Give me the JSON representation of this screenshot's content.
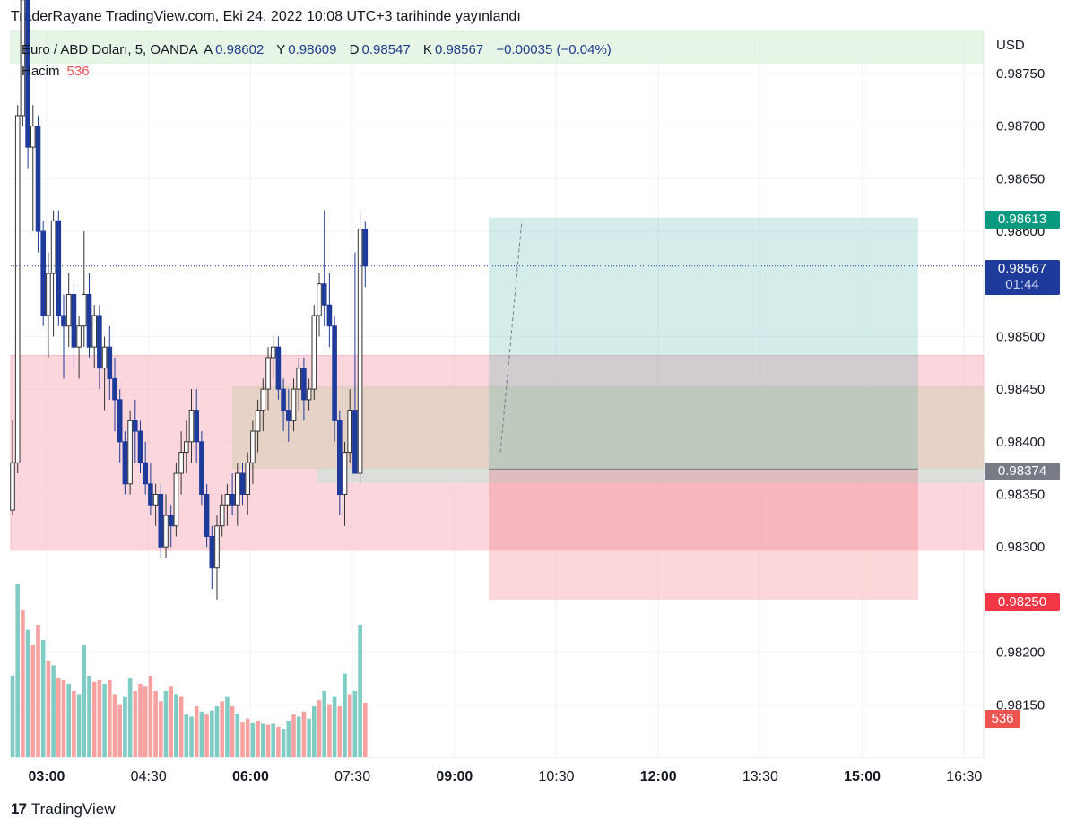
{
  "header": {
    "title": "TraderRayane TradingView.com, Eki 24, 2022 10:08 UTC+3 tarihinde yayınlandı"
  },
  "legend": {
    "symbol": "Euro / ABD Doları, 5, OANDA",
    "open_label": "A",
    "open": "0.98602",
    "high_label": "Y",
    "high": "0.98609",
    "low_label": "D",
    "low": "0.98547",
    "close_label": "K",
    "close": "0.98567",
    "change": "−0.00035 (−0.04%)",
    "volume_label": "Hacim",
    "volume": "536"
  },
  "axis": {
    "currency": "USD",
    "y_ticks": [
      "0.98750",
      "0.98700",
      "0.98650",
      "0.98600",
      "0.98500",
      "0.98450",
      "0.98400",
      "0.98350",
      "0.98300",
      "0.98200",
      "0.98150"
    ],
    "x_ticks": [
      {
        "label": "03:00",
        "bold": true
      },
      {
        "label": "04:30",
        "bold": false
      },
      {
        "label": "06:00",
        "bold": true
      },
      {
        "label": "07:30",
        "bold": false
      },
      {
        "label": "09:00",
        "bold": true
      },
      {
        "label": "10:30",
        "bold": false
      },
      {
        "label": "12:00",
        "bold": true
      },
      {
        "label": "13:30",
        "bold": false
      },
      {
        "label": "15:00",
        "bold": true
      },
      {
        "label": "16:30",
        "bold": false
      }
    ]
  },
  "price_tags": {
    "target": "0.98613",
    "current": "0.98567",
    "countdown": "01:44",
    "entry": "0.98374",
    "stop": "0.98250",
    "volume": "536"
  },
  "colors": {
    "up_body": "#ffffff",
    "down_body": "#1e3a9a",
    "wick": "#333333",
    "vol_up": "#80cbc4",
    "vol_down": "#f7a1a1",
    "target_tag": "#089981",
    "current_tag": "#1e3a9a",
    "entry_tag": "#787b86",
    "stop_tag": "#f23645"
  },
  "footer": {
    "brand": "TradingView",
    "logo": "17"
  },
  "chart_data": {
    "type": "candlestick",
    "symbol": "EURUSD",
    "interval": "5",
    "ylim": [
      0.981,
      0.9879
    ],
    "candles_ohlc": [
      [
        0.98335,
        0.9842,
        0.9833,
        0.9838
      ],
      [
        0.9838,
        0.9872,
        0.9837,
        0.9871
      ],
      [
        0.9871,
        0.9885,
        0.987,
        0.9882
      ],
      [
        0.9882,
        0.9883,
        0.9866,
        0.9868
      ],
      [
        0.9868,
        0.9872,
        0.986,
        0.987
      ],
      [
        0.987,
        0.9871,
        0.9858,
        0.986
      ],
      [
        0.986,
        0.9861,
        0.9851,
        0.9852
      ],
      [
        0.9852,
        0.9858,
        0.9848,
        0.9856
      ],
      [
        0.9856,
        0.9862,
        0.985,
        0.9861
      ],
      [
        0.9861,
        0.9862,
        0.9851,
        0.9852
      ],
      [
        0.9852,
        0.9854,
        0.9846,
        0.9851
      ],
      [
        0.9851,
        0.9856,
        0.9849,
        0.9854
      ],
      [
        0.9854,
        0.9855,
        0.9847,
        0.9849
      ],
      [
        0.9849,
        0.9852,
        0.9846,
        0.9851
      ],
      [
        0.9851,
        0.986,
        0.9849,
        0.9854
      ],
      [
        0.9854,
        0.9856,
        0.9848,
        0.9849
      ],
      [
        0.9849,
        0.9853,
        0.9847,
        0.9852
      ],
      [
        0.9852,
        0.9853,
        0.9845,
        0.9847
      ],
      [
        0.9847,
        0.985,
        0.9843,
        0.9849
      ],
      [
        0.9849,
        0.9851,
        0.9844,
        0.9846
      ],
      [
        0.9846,
        0.9848,
        0.9841,
        0.9844
      ],
      [
        0.9844,
        0.9845,
        0.9838,
        0.984
      ],
      [
        0.984,
        0.9841,
        0.9835,
        0.9836
      ],
      [
        0.9836,
        0.9843,
        0.9835,
        0.9842
      ],
      [
        0.9842,
        0.9844,
        0.9838,
        0.9841
      ],
      [
        0.9841,
        0.9842,
        0.9837,
        0.9838
      ],
      [
        0.9838,
        0.984,
        0.9835,
        0.9836
      ],
      [
        0.9836,
        0.9838,
        0.9833,
        0.9834
      ],
      [
        0.9834,
        0.9836,
        0.9832,
        0.9835
      ],
      [
        0.9835,
        0.9836,
        0.9829,
        0.983
      ],
      [
        0.983,
        0.9835,
        0.9829,
        0.9833
      ],
      [
        0.9833,
        0.9834,
        0.983,
        0.9832
      ],
      [
        0.9832,
        0.9838,
        0.9831,
        0.9837
      ],
      [
        0.9837,
        0.9841,
        0.9835,
        0.9839
      ],
      [
        0.9839,
        0.9842,
        0.9837,
        0.984
      ],
      [
        0.984,
        0.9845,
        0.9838,
        0.9843
      ],
      [
        0.9843,
        0.9845,
        0.9838,
        0.984
      ],
      [
        0.984,
        0.9841,
        0.9834,
        0.9835
      ],
      [
        0.9835,
        0.9836,
        0.983,
        0.9831
      ],
      [
        0.9831,
        0.9832,
        0.9826,
        0.9828
      ],
      [
        0.9828,
        0.9833,
        0.9825,
        0.9832
      ],
      [
        0.9832,
        0.9835,
        0.9831,
        0.9834
      ],
      [
        0.9834,
        0.9836,
        0.9832,
        0.9835
      ],
      [
        0.9835,
        0.9837,
        0.9833,
        0.9834
      ],
      [
        0.9834,
        0.9838,
        0.9832,
        0.9837
      ],
      [
        0.9837,
        0.9838,
        0.9834,
        0.9835
      ],
      [
        0.9835,
        0.9839,
        0.9833,
        0.9838
      ],
      [
        0.9838,
        0.9842,
        0.9836,
        0.9841
      ],
      [
        0.9841,
        0.9844,
        0.9839,
        0.9843
      ],
      [
        0.9843,
        0.9846,
        0.9841,
        0.9845
      ],
      [
        0.9845,
        0.9849,
        0.9843,
        0.9848
      ],
      [
        0.9848,
        0.985,
        0.9846,
        0.9849
      ],
      [
        0.9849,
        0.985,
        0.9844,
        0.9845
      ],
      [
        0.9845,
        0.9846,
        0.9841,
        0.9843
      ],
      [
        0.9843,
        0.9845,
        0.984,
        0.9842
      ],
      [
        0.9842,
        0.9846,
        0.9841,
        0.9845
      ],
      [
        0.9845,
        0.9848,
        0.9843,
        0.9847
      ],
      [
        0.9847,
        0.9848,
        0.9842,
        0.9844
      ],
      [
        0.9844,
        0.9846,
        0.9843,
        0.9845
      ],
      [
        0.9845,
        0.9853,
        0.9844,
        0.9852
      ],
      [
        0.9852,
        0.9856,
        0.985,
        0.9855
      ],
      [
        0.9855,
        0.9862,
        0.9851,
        0.9853
      ],
      [
        0.9853,
        0.9856,
        0.9849,
        0.9851
      ],
      [
        0.9851,
        0.9852,
        0.984,
        0.9842
      ],
      [
        0.9842,
        0.9843,
        0.9833,
        0.9835
      ],
      [
        0.9835,
        0.984,
        0.9832,
        0.9839
      ],
      [
        0.9839,
        0.9845,
        0.9838,
        0.9843
      ],
      [
        0.9843,
        0.9858,
        0.9837,
        0.9837
      ],
      [
        0.9837,
        0.9862,
        0.9836,
        0.98602
      ],
      [
        0.98602,
        0.98609,
        0.98547,
        0.98567
      ]
    ],
    "volume_max": 1800,
    "volume": [
      {
        "v": 800,
        "up": true
      },
      {
        "v": 1700,
        "up": true
      },
      {
        "v": 1450,
        "up": false
      },
      {
        "v": 1250,
        "up": true
      },
      {
        "v": 1100,
        "up": false
      },
      {
        "v": 1300,
        "up": false
      },
      {
        "v": 1150,
        "up": true
      },
      {
        "v": 950,
        "up": false
      },
      {
        "v": 900,
        "up": true
      },
      {
        "v": 780,
        "up": false
      },
      {
        "v": 760,
        "up": false
      },
      {
        "v": 720,
        "up": true
      },
      {
        "v": 650,
        "up": false
      },
      {
        "v": 620,
        "up": true
      },
      {
        "v": 1100,
        "up": true
      },
      {
        "v": 800,
        "up": true
      },
      {
        "v": 740,
        "up": false
      },
      {
        "v": 760,
        "up": false
      },
      {
        "v": 720,
        "up": true
      },
      {
        "v": 760,
        "up": false
      },
      {
        "v": 620,
        "up": false
      },
      {
        "v": 520,
        "up": false
      },
      {
        "v": 600,
        "up": true
      },
      {
        "v": 780,
        "up": true
      },
      {
        "v": 650,
        "up": false
      },
      {
        "v": 720,
        "up": false
      },
      {
        "v": 700,
        "up": false
      },
      {
        "v": 800,
        "up": false
      },
      {
        "v": 650,
        "up": false
      },
      {
        "v": 550,
        "up": false
      },
      {
        "v": 650,
        "up": true
      },
      {
        "v": 700,
        "up": false
      },
      {
        "v": 620,
        "up": true
      },
      {
        "v": 600,
        "up": false
      },
      {
        "v": 420,
        "up": true
      },
      {
        "v": 400,
        "up": true
      },
      {
        "v": 500,
        "up": false
      },
      {
        "v": 450,
        "up": true
      },
      {
        "v": 420,
        "up": false
      },
      {
        "v": 460,
        "up": true
      },
      {
        "v": 500,
        "up": true
      },
      {
        "v": 550,
        "up": false
      },
      {
        "v": 600,
        "up": true
      },
      {
        "v": 500,
        "up": false
      },
      {
        "v": 430,
        "up": true
      },
      {
        "v": 350,
        "up": false
      },
      {
        "v": 380,
        "up": false
      },
      {
        "v": 340,
        "up": true
      },
      {
        "v": 360,
        "up": false
      },
      {
        "v": 330,
        "up": true
      },
      {
        "v": 320,
        "up": false
      },
      {
        "v": 330,
        "up": true
      },
      {
        "v": 300,
        "up": false
      },
      {
        "v": 280,
        "up": true
      },
      {
        "v": 360,
        "up": true
      },
      {
        "v": 420,
        "up": false
      },
      {
        "v": 400,
        "up": true
      },
      {
        "v": 450,
        "up": false
      },
      {
        "v": 380,
        "up": true
      },
      {
        "v": 500,
        "up": true
      },
      {
        "v": 560,
        "up": false
      },
      {
        "v": 650,
        "up": true
      },
      {
        "v": 520,
        "up": false
      },
      {
        "v": 600,
        "up": true
      },
      {
        "v": 500,
        "up": false
      },
      {
        "v": 820,
        "up": true
      },
      {
        "v": 620,
        "up": false
      },
      {
        "v": 650,
        "up": true
      },
      {
        "v": 1300,
        "up": true
      },
      {
        "v": 536,
        "up": false
      }
    ],
    "position": {
      "type": "long",
      "entry": 0.98374,
      "target": 0.98613,
      "stop": 0.9825
    },
    "zones": [
      {
        "color": "#f8bbc4",
        "y_high": 0.98482,
        "y_low": 0.98297
      },
      {
        "color": "#d9cfb8",
        "y_high": 0.98452,
        "y_low": 0.98375
      },
      {
        "color": "#c9e3dc",
        "y_high": 0.98374,
        "y_low": 0.98362
      },
      {
        "color": "#d6efd6",
        "y_high": 0.9879,
        "y_low": 0.9876
      }
    ],
    "current_price": 0.98567
  }
}
